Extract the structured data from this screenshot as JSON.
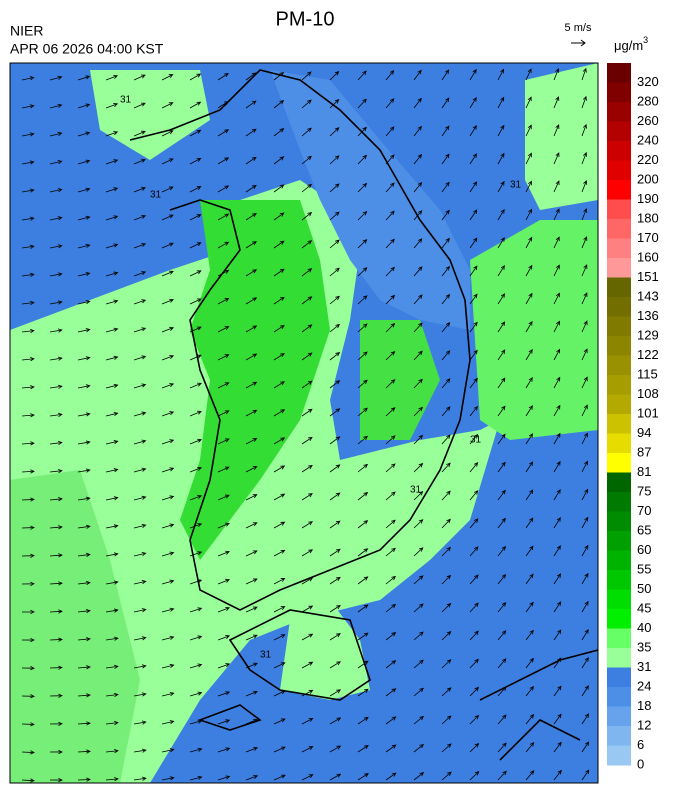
{
  "header": {
    "title": "PM-10",
    "agency": "NIER",
    "datetime": "APR 06 2026 04:00 KST",
    "wind_scale": "5 m/s"
  },
  "colorbar": {
    "unit": "μg/m",
    "unit_superscript": "3",
    "labels": [
      320,
      280,
      260,
      240,
      220,
      200,
      190,
      180,
      170,
      160,
      151,
      143,
      136,
      129,
      122,
      115,
      108,
      101,
      94,
      87,
      81,
      75,
      70,
      65,
      60,
      55,
      50,
      45,
      40,
      35,
      31,
      24,
      18,
      12,
      6,
      0
    ],
    "colors": [
      "#6b0000",
      "#800000",
      "#990000",
      "#b30000",
      "#cc0000",
      "#e00000",
      "#ff0000",
      "#ff4d4d",
      "#ff6666",
      "#ff8080",
      "#ff9999",
      "#666600",
      "#736e00",
      "#807a00",
      "#8c8500",
      "#999100",
      "#a69d00",
      "#b3a900",
      "#ccc200",
      "#e6dc00",
      "#ffff00",
      "#006600",
      "#007a00",
      "#008c00",
      "#00a000",
      "#00b300",
      "#00c800",
      "#00dd00",
      "#00f000",
      "#66ff66",
      "#99ff99",
      "#3d7fe0",
      "#4d8ee6",
      "#66a3ec",
      "#80b6f0",
      "#99c8f2"
    ]
  },
  "contour_labels": [
    "31",
    "31",
    "31",
    "31",
    "31",
    "31"
  ]
}
